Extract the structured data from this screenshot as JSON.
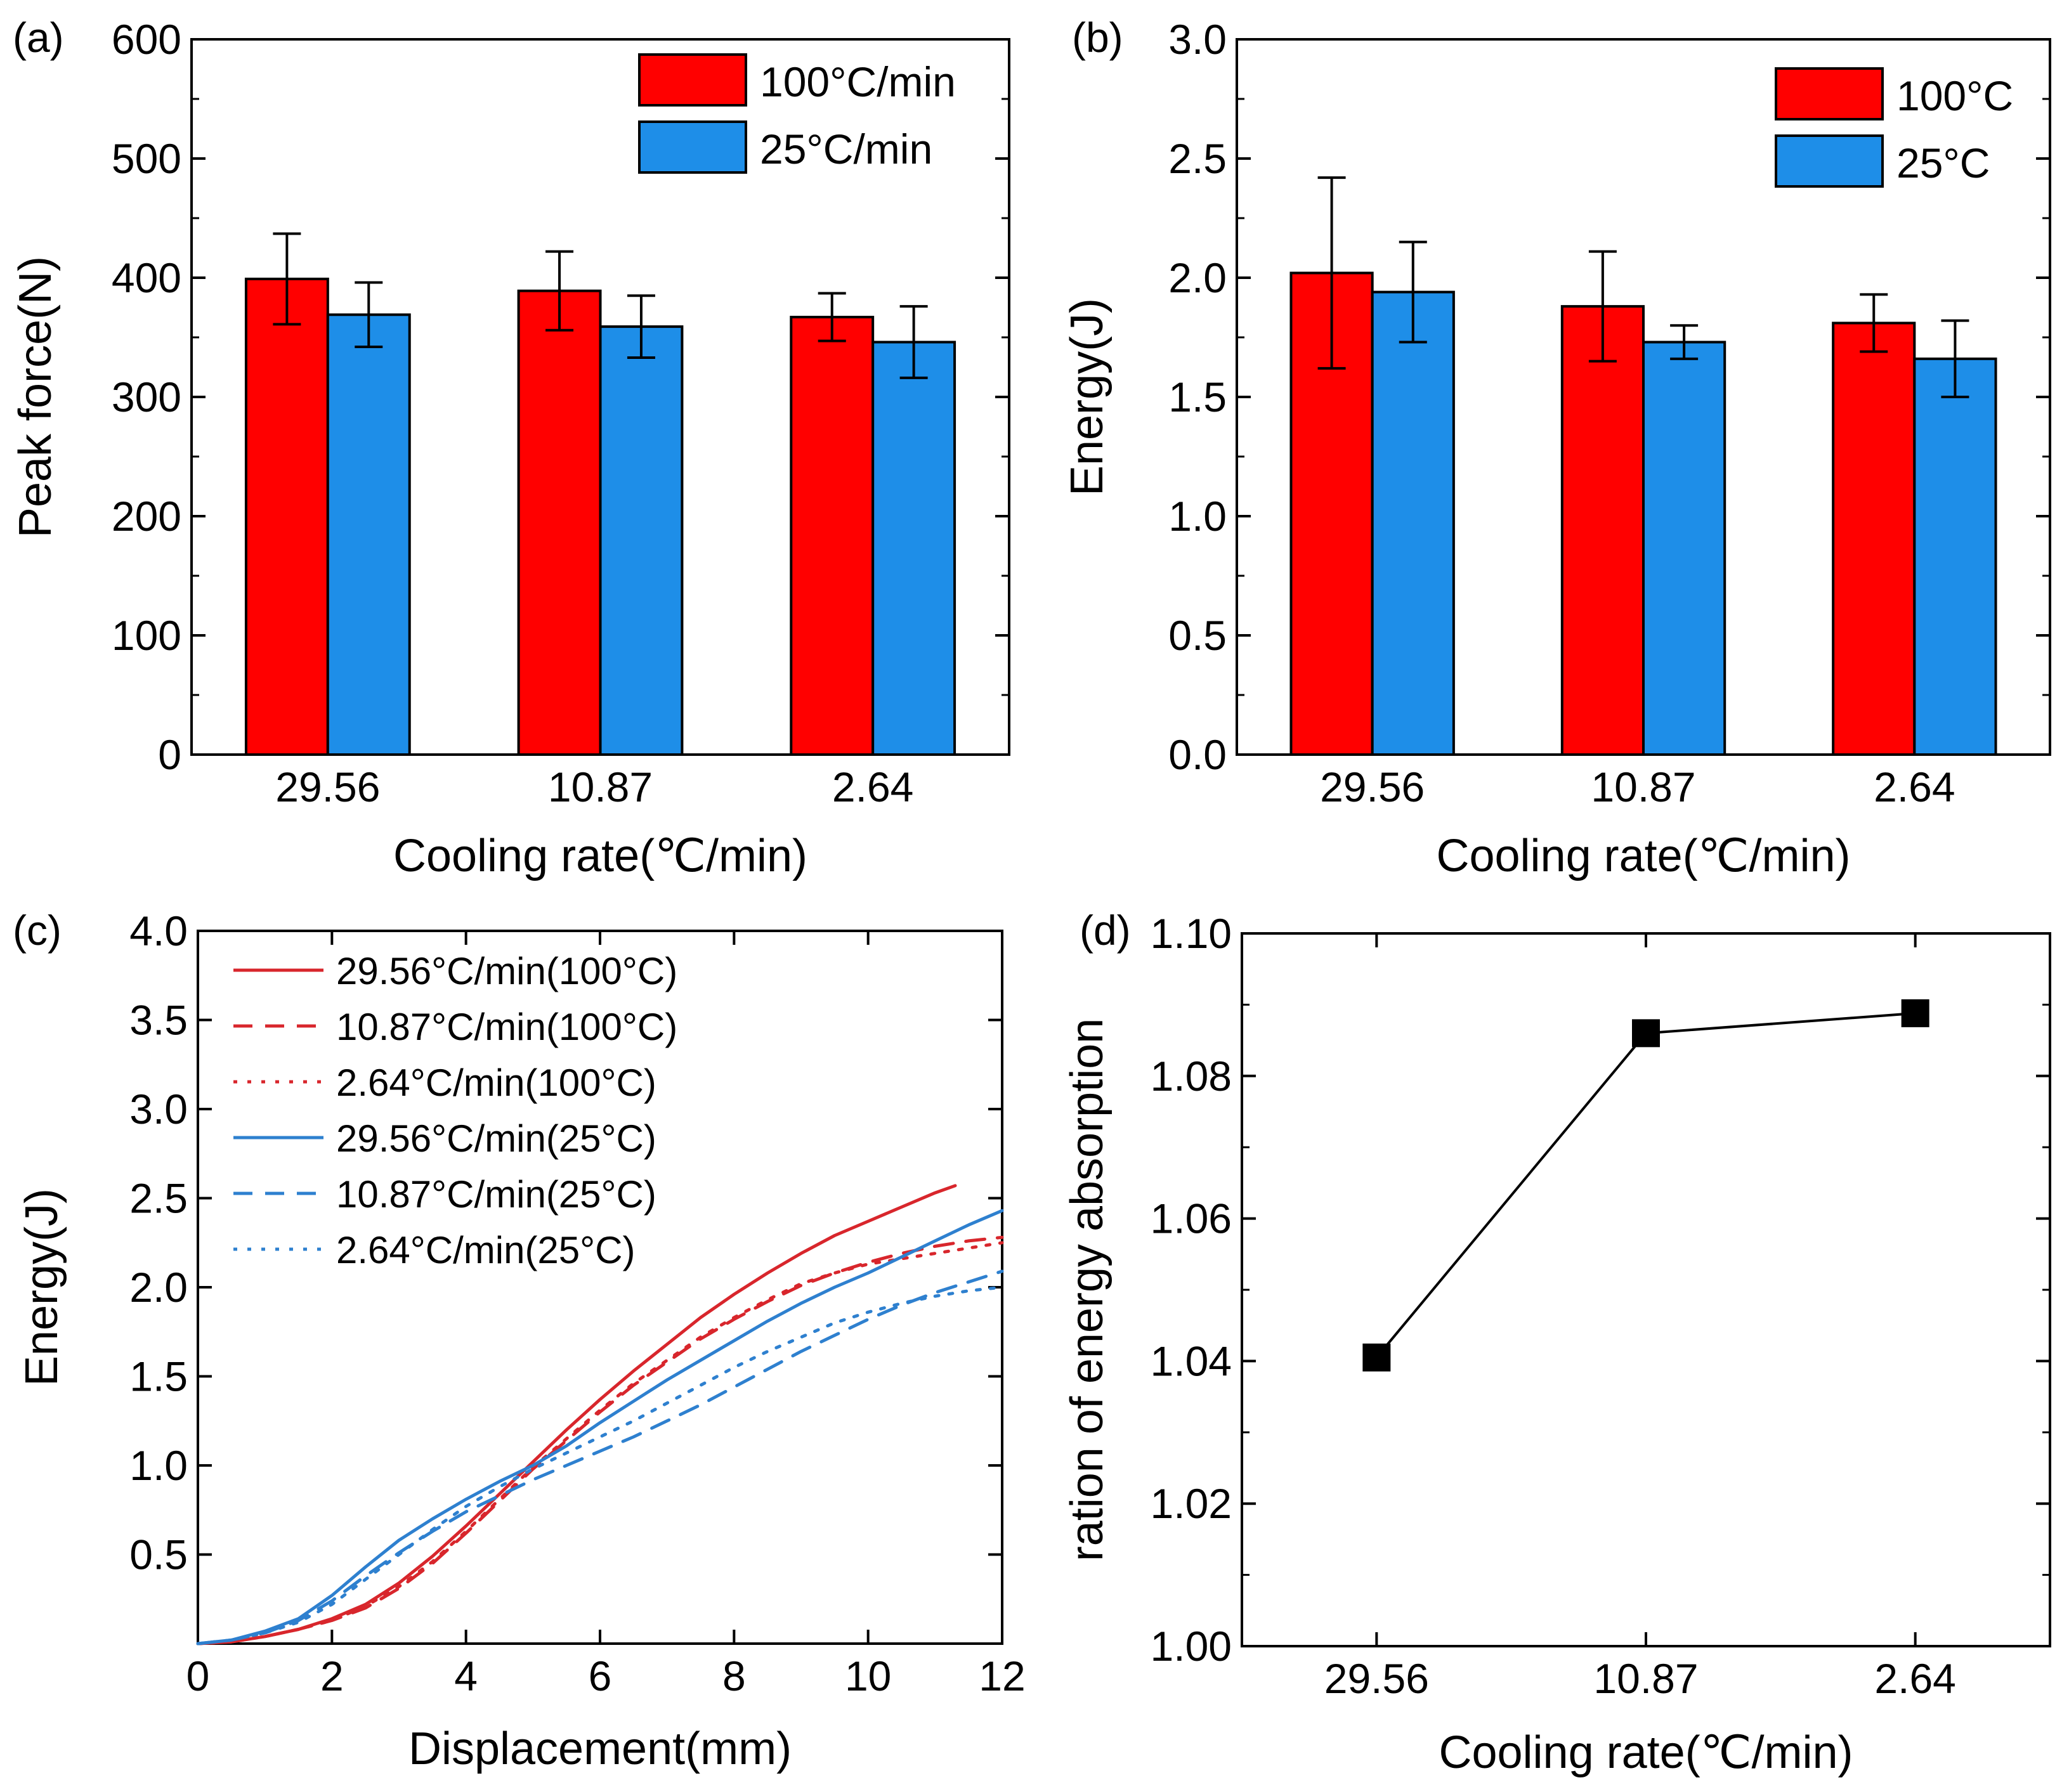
{
  "colors": {
    "red": "#ff0000",
    "blue": "#1e8ee8",
    "line_red": "#d8262c",
    "line_blue": "#2e80cf",
    "marker": "#000000"
  },
  "panels": {
    "a": {
      "label": "(a)"
    },
    "b": {
      "label": "(b)"
    },
    "c": {
      "label": "(c)"
    },
    "d": {
      "label": "(d)"
    }
  },
  "chart_data": [
    {
      "id": "a",
      "type": "bar",
      "title": "",
      "categories": [
        "29.56",
        "10.87",
        "2.64"
      ],
      "series": [
        {
          "name": "100°C/min",
          "values": [
            399,
            389,
            367
          ],
          "errors": [
            38,
            33,
            20
          ],
          "color": "#ff0000"
        },
        {
          "name": "25°C/min",
          "values": [
            369,
            359,
            346
          ],
          "errors": [
            27,
            26,
            30
          ],
          "color": "#1e8ee8"
        }
      ],
      "xlabel": "Cooling rate(℃/min)",
      "ylabel": "Peak force(N)",
      "ylim": [
        0,
        600
      ],
      "yticks": [
        0,
        100,
        200,
        300,
        400,
        500,
        600
      ],
      "ytick_labels": [
        "0",
        "100",
        "200",
        "300",
        "400",
        "500",
        "600"
      ],
      "legend_position": "top-right",
      "grid": false
    },
    {
      "id": "b",
      "type": "bar",
      "title": "",
      "categories": [
        "29.56",
        "10.87",
        "2.64"
      ],
      "series": [
        {
          "name": "100°C",
          "values": [
            2.02,
            1.88,
            1.81
          ],
          "errors": [
            0.4,
            0.23,
            0.12
          ],
          "color": "#ff0000"
        },
        {
          "name": "25°C",
          "values": [
            1.94,
            1.73,
            1.66
          ],
          "errors": [
            0.21,
            0.07,
            0.16
          ],
          "color": "#1e8ee8"
        }
      ],
      "xlabel": "Cooling rate(℃/min)",
      "ylabel": "Energy(J)",
      "ylim": [
        0,
        3.0
      ],
      "yticks": [
        0,
        0.5,
        1.0,
        1.5,
        2.0,
        2.5,
        3.0
      ],
      "ytick_labels": [
        "0.0",
        "0.5",
        "1.0",
        "1.5",
        "2.0",
        "2.5",
        "3.0"
      ],
      "legend_position": "top-right",
      "grid": false
    },
    {
      "id": "c",
      "type": "line",
      "title": "",
      "xlabel": "Displacement(mm)",
      "ylabel": "Energy(J)",
      "xlim": [
        0,
        12
      ],
      "ylim": [
        0,
        4.0
      ],
      "xticks": [
        0,
        2,
        4,
        6,
        8,
        10,
        12
      ],
      "xtick_labels": [
        "0",
        "2",
        "4",
        "6",
        "8",
        "10",
        "12"
      ],
      "yticks": [
        0.5,
        1.0,
        1.5,
        2.0,
        2.5,
        3.0,
        3.5,
        4.0
      ],
      "ytick_labels": [
        "0.5",
        "1.0",
        "1.5",
        "2.0",
        "2.5",
        "3.0",
        "3.5",
        "4.0"
      ],
      "legend_position": "top-left",
      "grid": false,
      "series": [
        {
          "name": "29.56°C/min(100°C)",
          "color": "#d8262c",
          "dash": "solid",
          "x": [
            0,
            0.5,
            1,
            1.5,
            2,
            2.5,
            3,
            3.5,
            4,
            4.5,
            5,
            5.5,
            6,
            6.5,
            7,
            7.5,
            8,
            8.5,
            9,
            9.5,
            10,
            10.5,
            11,
            11.3
          ],
          "y": [
            0,
            0.01,
            0.04,
            0.08,
            0.14,
            0.22,
            0.34,
            0.49,
            0.66,
            0.84,
            1.02,
            1.2,
            1.37,
            1.53,
            1.68,
            1.83,
            1.96,
            2.08,
            2.19,
            2.29,
            2.37,
            2.45,
            2.53,
            2.57
          ]
        },
        {
          "name": "10.87°C/min(100°C)",
          "color": "#d8262c",
          "dash": "dashed",
          "x": [
            0,
            0.5,
            1,
            1.5,
            2,
            2.5,
            3,
            3.5,
            4,
            4.5,
            5,
            5.5,
            6,
            6.5,
            7,
            7.5,
            8,
            8.5,
            9,
            9.5,
            10,
            10.5,
            11,
            11.5,
            12
          ],
          "y": [
            0,
            0.01,
            0.04,
            0.08,
            0.13,
            0.2,
            0.31,
            0.45,
            0.62,
            0.8,
            0.98,
            1.14,
            1.3,
            1.45,
            1.58,
            1.71,
            1.82,
            1.92,
            2.01,
            2.08,
            2.14,
            2.19,
            2.23,
            2.26,
            2.28
          ]
        },
        {
          "name": "2.64°C/min(100°C)",
          "color": "#d8262c",
          "dash": "dotted",
          "x": [
            0,
            0.5,
            1,
            1.5,
            2,
            2.5,
            3,
            3.5,
            4,
            4.5,
            5,
            5.5,
            6,
            6.5,
            7,
            7.5,
            8,
            8.5,
            9,
            9.5,
            10,
            10.5,
            11,
            11.5,
            12
          ],
          "y": [
            0,
            0.01,
            0.04,
            0.08,
            0.13,
            0.21,
            0.32,
            0.46,
            0.63,
            0.81,
            0.99,
            1.15,
            1.31,
            1.46,
            1.59,
            1.72,
            1.83,
            1.93,
            2.02,
            2.08,
            2.13,
            2.16,
            2.19,
            2.22,
            2.25
          ]
        },
        {
          "name": "29.56°C/min(25°C)",
          "color": "#2e80cf",
          "dash": "solid",
          "x": [
            0,
            0.5,
            1,
            1.5,
            2,
            2.5,
            3,
            3.5,
            4,
            4.5,
            5,
            5.5,
            6,
            6.5,
            7,
            7.5,
            8,
            8.5,
            9,
            9.5,
            10,
            10.5,
            11,
            11.5,
            12
          ],
          "y": [
            0,
            0.02,
            0.07,
            0.14,
            0.27,
            0.43,
            0.58,
            0.7,
            0.81,
            0.91,
            1.0,
            1.11,
            1.24,
            1.36,
            1.48,
            1.59,
            1.7,
            1.81,
            1.91,
            2.0,
            2.08,
            2.17,
            2.26,
            2.35,
            2.43
          ]
        },
        {
          "name": "10.87°C/min(25°C)",
          "color": "#2e80cf",
          "dash": "dashed",
          "x": [
            0,
            0.5,
            1,
            1.5,
            2,
            2.5,
            3,
            3.5,
            4,
            4.5,
            5,
            5.5,
            6,
            6.5,
            7,
            7.5,
            8,
            8.5,
            9,
            9.5,
            10,
            10.5,
            11,
            11.5,
            12
          ],
          "y": [
            0,
            0.02,
            0.06,
            0.13,
            0.24,
            0.38,
            0.51,
            0.63,
            0.74,
            0.83,
            0.92,
            1.0,
            1.08,
            1.16,
            1.25,
            1.34,
            1.44,
            1.54,
            1.64,
            1.73,
            1.82,
            1.9,
            1.97,
            2.03,
            2.09
          ]
        },
        {
          "name": "2.64°C/min(25°C)",
          "color": "#2e80cf",
          "dash": "dotted",
          "x": [
            0,
            0.5,
            1,
            1.5,
            2,
            2.5,
            3,
            3.5,
            4,
            4.5,
            5,
            5.5,
            6,
            6.5,
            7,
            7.5,
            8,
            8.5,
            9,
            9.5,
            10,
            10.5,
            11,
            11.5,
            12
          ],
          "y": [
            0,
            0.02,
            0.06,
            0.12,
            0.22,
            0.36,
            0.5,
            0.64,
            0.77,
            0.88,
            0.98,
            1.07,
            1.16,
            1.25,
            1.35,
            1.45,
            1.55,
            1.64,
            1.72,
            1.8,
            1.86,
            1.91,
            1.95,
            1.98,
            2.0
          ]
        }
      ]
    },
    {
      "id": "d",
      "type": "line",
      "title": "",
      "categories": [
        "29.56",
        "10.87",
        "2.64"
      ],
      "values": [
        1.0405,
        1.086,
        1.0888
      ],
      "marker": "square",
      "xlabel": "Cooling rate(℃/min)",
      "ylabel": "ration of energy absorption",
      "ylim": [
        1.0,
        1.1
      ],
      "yticks": [
        1.0,
        1.02,
        1.04,
        1.06,
        1.08,
        1.1
      ],
      "ytick_labels": [
        "1.00",
        "1.02",
        "1.04",
        "1.06",
        "1.08",
        "1.10"
      ],
      "grid": false
    }
  ]
}
